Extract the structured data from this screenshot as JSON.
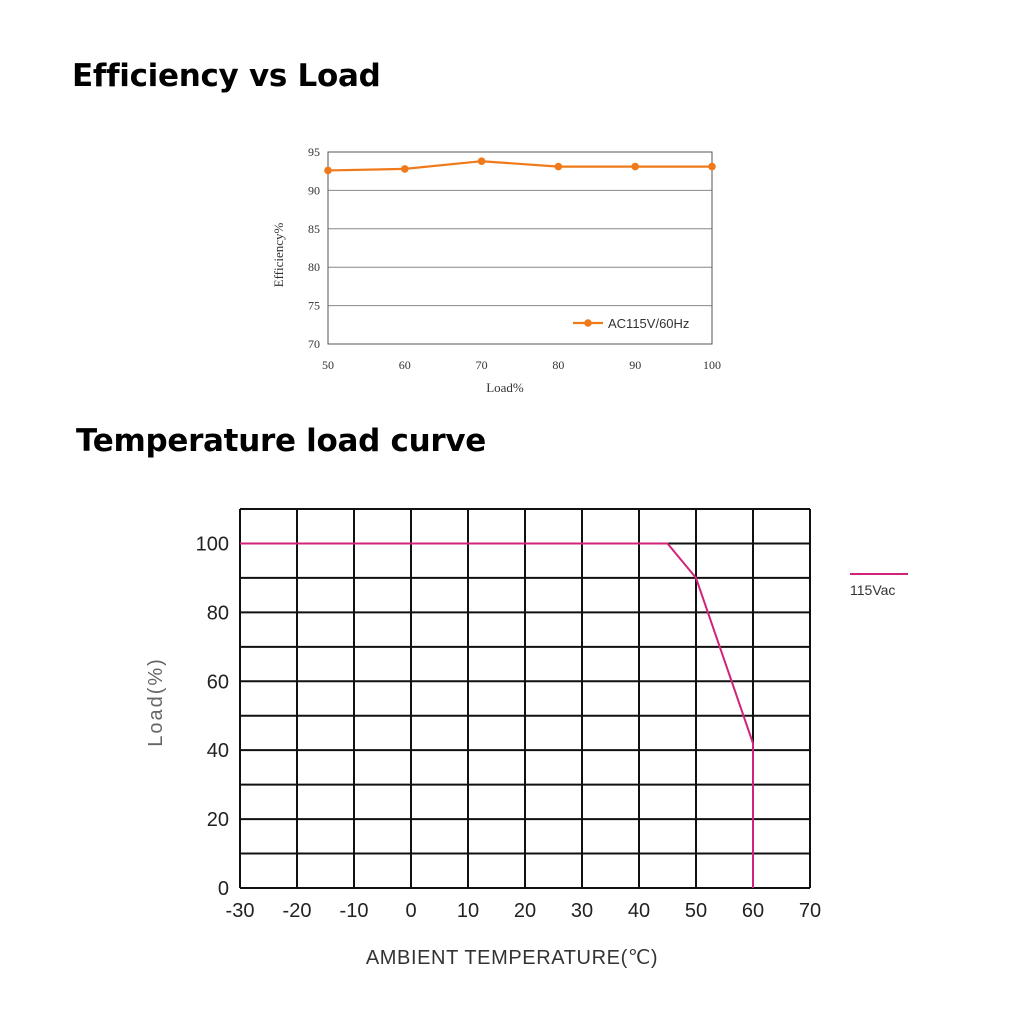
{
  "headings": {
    "efficiency": "Efficiency vs Load",
    "temperature": "Temperature load curve"
  },
  "chart_data": [
    {
      "type": "line",
      "title": "Efficiency vs Load",
      "xlabel": "Load%",
      "ylabel": "Efficiency%",
      "xlim": [
        50,
        100
      ],
      "ylim": [
        70,
        95
      ],
      "xticks": [
        50,
        60,
        70,
        80,
        90,
        100
      ],
      "yticks": [
        70,
        75,
        80,
        85,
        90,
        95
      ],
      "grid": "horizontal",
      "legend_position": "bottom-right",
      "colors": {
        "series": "#f07a1a"
      },
      "series": [
        {
          "name": "AC115V/60Hz",
          "x": [
            50,
            60,
            70,
            80,
            90,
            100
          ],
          "y": [
            92.6,
            92.8,
            93.8,
            93.1,
            93.1,
            93.1
          ]
        }
      ]
    },
    {
      "type": "line",
      "title": "Temperature load curve",
      "xlabel": "AMBIENT TEMPERATURE(℃)",
      "ylabel": "Load(%)",
      "xlim": [
        -30,
        70
      ],
      "ylim": [
        0,
        110
      ],
      "xticks": [
        -30,
        -20,
        -10,
        0,
        10,
        20,
        30,
        40,
        50,
        60,
        70
      ],
      "yticks": [
        0,
        20,
        40,
        60,
        80,
        100
      ],
      "grid": "on",
      "legend_position": "right",
      "colors": {
        "series": "#d2237a"
      },
      "series": [
        {
          "name": "115Vac",
          "x": [
            -30,
            45,
            50,
            60,
            60
          ],
          "y": [
            100,
            100,
            90,
            42,
            0
          ]
        }
      ]
    }
  ]
}
